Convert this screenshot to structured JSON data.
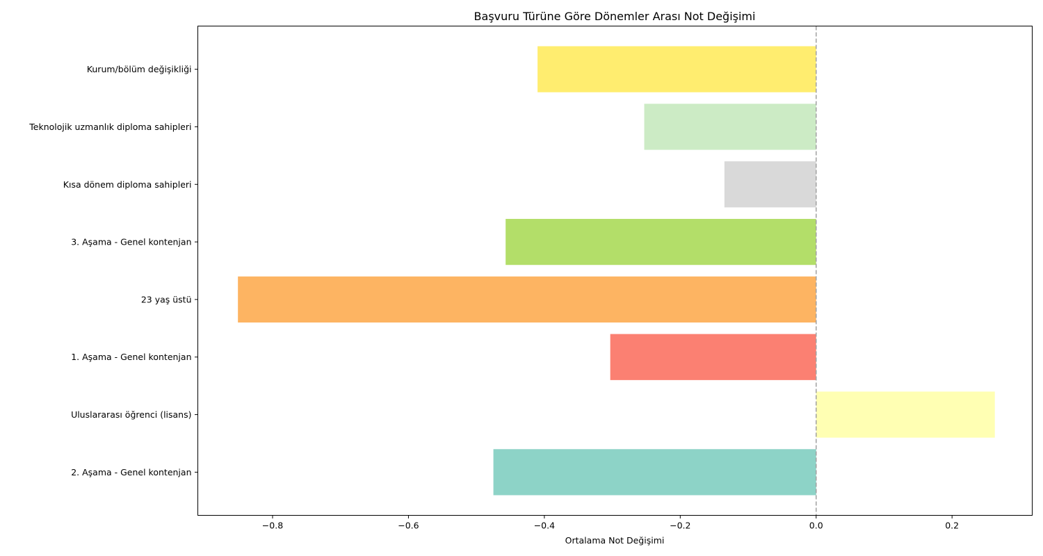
{
  "chart_data": {
    "type": "bar",
    "orientation": "horizontal",
    "title": "Başvuru Türüne Göre Dönemler Arası Not Değişimi",
    "xlabel": "Ortalama Not Değişimi",
    "ylabel": "",
    "xlim": [
      -0.91,
      0.318
    ],
    "xticks": [
      -0.8,
      -0.6,
      -0.4,
      -0.2,
      0.0,
      0.2
    ],
    "xtick_labels": [
      "−0.8",
      "−0.6",
      "−0.4",
      "−0.2",
      "0.0",
      "0.2"
    ],
    "reference_line": {
      "x": 0.0,
      "style": "dashed",
      "color": "#a0a0a0"
    },
    "grid": false,
    "categories": [
      "2. Aşama - Genel kontenjan",
      "Uluslararası öğrenci (lisans)",
      "1. Aşama - Genel kontenjan",
      "23 yaş üstü",
      "3. Aşama - Genel kontenjan",
      "Kısa dönem diploma sahipleri",
      "Teknolojik uzmanlık diploma sahipleri",
      "Kurum/bölüm değişikliği"
    ],
    "values": [
      -0.475,
      0.263,
      -0.303,
      -0.851,
      -0.457,
      -0.135,
      -0.253,
      -0.41
    ],
    "colors": [
      "#8dd3c7",
      "#ffffb3",
      "#fb8072",
      "#fdb462",
      "#b3de69",
      "#d9d9d9",
      "#ccebc5",
      "#ffed6f"
    ]
  }
}
